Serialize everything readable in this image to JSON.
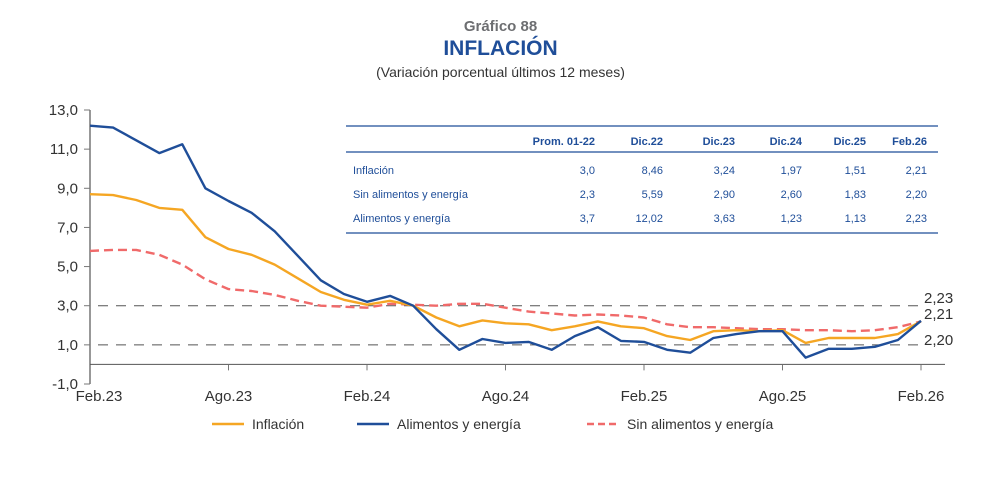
{
  "header": {
    "kicker": "Gráfico 88",
    "title": "INFLACIÓN",
    "subtitle": "(Variación porcentual últimos 12 meses)"
  },
  "chart_data": {
    "type": "line",
    "title": "INFLACIÓN",
    "subtitle": "(Variación porcentual últimos 12 meses)",
    "xlabel": "",
    "ylabel": "",
    "ylim": [
      -1.0,
      13.0
    ],
    "yticks": [
      "-1,0",
      "1,0",
      "3,0",
      "5,0",
      "7,0",
      "9,0",
      "11,0",
      "13,0"
    ],
    "ytick_values": [
      -1,
      1,
      3,
      5,
      7,
      9,
      11,
      13
    ],
    "xticks": [
      "Feb.23",
      "Ago.23",
      "Feb.24",
      "Ago.24",
      "Feb.25",
      "Ago.25",
      "Feb.26"
    ],
    "xtick_index": [
      0,
      6,
      12,
      18,
      24,
      30,
      36
    ],
    "x_count": 37,
    "grid": false,
    "reference_lines": [
      1.0,
      3.0
    ],
    "legend_position": "bottom",
    "series": [
      {
        "name": "Inflación",
        "color": "#f5a623",
        "style": "solid",
        "values": [
          8.7,
          8.65,
          8.4,
          8.0,
          7.9,
          6.5,
          5.9,
          5.6,
          5.1,
          4.4,
          3.7,
          3.3,
          3.05,
          3.25,
          3.0,
          2.4,
          1.95,
          2.25,
          2.1,
          2.05,
          1.75,
          1.95,
          2.2,
          1.95,
          1.85,
          1.45,
          1.25,
          1.7,
          1.75,
          1.7,
          1.75,
          1.1,
          1.35,
          1.35,
          1.35,
          1.55,
          2.21
        ]
      },
      {
        "name": "Alimentos y energía",
        "color": "#1f4e99",
        "style": "solid",
        "values": [
          12.2,
          12.1,
          11.45,
          10.8,
          11.25,
          9.0,
          8.35,
          7.75,
          6.8,
          5.55,
          4.3,
          3.6,
          3.2,
          3.5,
          3.0,
          1.8,
          0.75,
          1.3,
          1.1,
          1.15,
          0.75,
          1.45,
          1.9,
          1.2,
          1.15,
          0.75,
          0.6,
          1.35,
          1.55,
          1.7,
          1.7,
          0.35,
          0.8,
          0.8,
          0.9,
          1.25,
          2.23
        ]
      },
      {
        "name": "Sin alimentos y energía",
        "color": "#f06a6a",
        "style": "dashed",
        "values": [
          5.8,
          5.85,
          5.85,
          5.6,
          5.1,
          4.35,
          3.85,
          3.75,
          3.55,
          3.25,
          3.0,
          2.95,
          2.9,
          3.1,
          3.05,
          3.0,
          3.1,
          3.1,
          2.9,
          2.7,
          2.6,
          2.5,
          2.55,
          2.5,
          2.4,
          2.05,
          1.9,
          1.9,
          1.85,
          1.8,
          1.8,
          1.75,
          1.75,
          1.7,
          1.75,
          1.9,
          2.2
        ]
      }
    ],
    "end_labels": [
      "2,23",
      "2,21",
      "2,20"
    ],
    "table": {
      "columns": [
        "",
        "Prom. 01-22",
        "Dic.22",
        "Dic.23",
        "Dic.24",
        "Dic.25",
        "Feb.26"
      ],
      "rows": [
        [
          "Inflación",
          "3,0",
          "8,46",
          "3,24",
          "1,97",
          "1,51",
          "2,21"
        ],
        [
          "Sin alimentos y energía",
          "2,3",
          "5,59",
          "2,90",
          "2,60",
          "1,83",
          "2,20"
        ],
        [
          "Alimentos y energía",
          "3,7",
          "12,02",
          "3,63",
          "1,23",
          "1,13",
          "2,23"
        ]
      ]
    }
  },
  "legend": [
    {
      "label": "Inflación",
      "color": "#f5a623",
      "style": "solid"
    },
    {
      "label": "Alimentos y energía",
      "color": "#1f4e99",
      "style": "solid"
    },
    {
      "label": "Sin alimentos y energía",
      "color": "#f06a6a",
      "style": "dashed"
    }
  ]
}
